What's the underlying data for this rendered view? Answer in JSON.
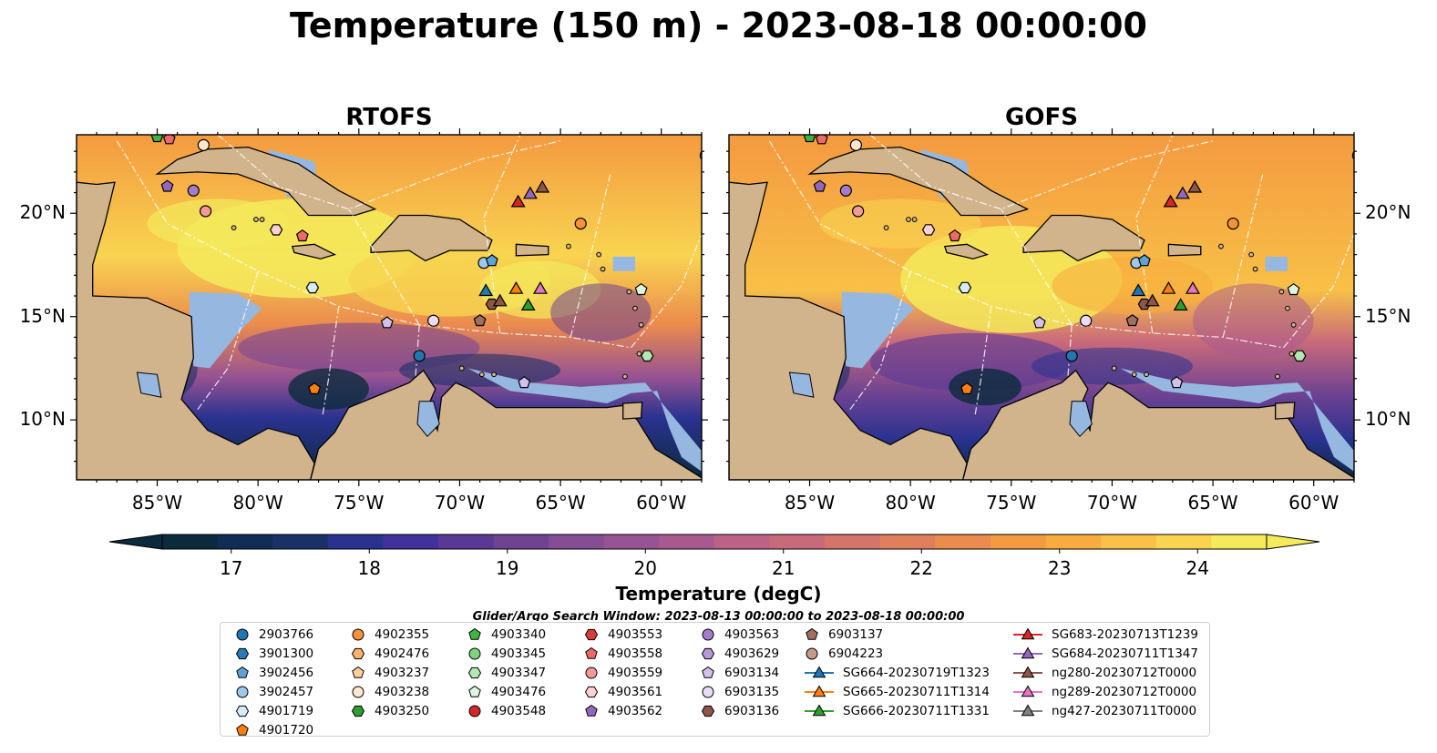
{
  "title": "Temperature (150 m) - 2023-08-18 00:00:00",
  "panels": [
    {
      "title": "RTOFS",
      "field": "rtofs"
    },
    {
      "title": "GOFS",
      "field": "gofs"
    }
  ],
  "axes": {
    "lon_ticks": [
      "85°W",
      "80°W",
      "75°W",
      "70°W",
      "65°W",
      "60°W"
    ],
    "lat_ticks": [
      "20°N",
      "15°N",
      "10°N"
    ]
  },
  "colorbar": {
    "label": "Temperature (degC)",
    "ticks": [
      "17",
      "18",
      "19",
      "20",
      "21",
      "22",
      "23",
      "24"
    ],
    "range": [
      16.5,
      24.5
    ],
    "step": 0.5,
    "colors": [
      "#0b2a3c",
      "#0f2d55",
      "#1b3067",
      "#2a3290",
      "#40319c",
      "#5a3896",
      "#6f4392",
      "#854d93",
      "#985392",
      "#a85a8f",
      "#bb6286",
      "#c96a7a",
      "#d6746b",
      "#e07f5c",
      "#eb8b4d",
      "#f49a40",
      "#f8ac3e",
      "#fbc047",
      "#f8d450",
      "#f4ea5b"
    ]
  },
  "search_window_note": "Glider/Argo Search Window: 2023-08-13 00:00:00 to 2023-08-18 00:00:00",
  "colors": {
    "land": "#d2b48c",
    "shelf": "#96b8e0",
    "ocean_cold": "#0b2a3c",
    "ocean_warm": "#f4ea5b"
  },
  "legend": {
    "columns": [
      [
        {
          "id": "2903766",
          "marker": "circle",
          "color": "#1f77b4"
        },
        {
          "id": "3901300",
          "marker": "hexagon",
          "color": "#2c7bb6"
        },
        {
          "id": "3902456",
          "marker": "pentagon",
          "color": "#5fa2d6"
        },
        {
          "id": "3902457",
          "marker": "circle",
          "color": "#9ec8ec"
        },
        {
          "id": "4901719",
          "marker": "hexagon",
          "color": "#d6ecfa"
        },
        {
          "id": "4901720",
          "marker": "pentagon",
          "color": "#ff7f0e"
        }
      ],
      [
        {
          "id": "4902355",
          "marker": "circle",
          "color": "#f5923b"
        },
        {
          "id": "4902476",
          "marker": "hexagon",
          "color": "#ffb26b"
        },
        {
          "id": "4903237",
          "marker": "pentagon",
          "color": "#ffcf9b"
        },
        {
          "id": "4903238",
          "marker": "circle",
          "color": "#ffe8cf"
        },
        {
          "id": "4903250",
          "marker": "hexagon",
          "color": "#2ca02c"
        }
      ],
      [
        {
          "id": "4903340",
          "marker": "pentagon",
          "color": "#3fb43f"
        },
        {
          "id": "4903345",
          "marker": "circle",
          "color": "#7fd37f"
        },
        {
          "id": "4903347",
          "marker": "hexagon",
          "color": "#b2e6b2"
        },
        {
          "id": "4903476",
          "marker": "pentagon",
          "color": "#dff5df"
        },
        {
          "id": "4903548",
          "marker": "circle",
          "color": "#d62728"
        }
      ],
      [
        {
          "id": "4903553",
          "marker": "hexagon",
          "color": "#dd3b3c"
        },
        {
          "id": "4903558",
          "marker": "pentagon",
          "color": "#ec6a6a"
        },
        {
          "id": "4903559",
          "marker": "circle",
          "color": "#f59a9a"
        },
        {
          "id": "4903561",
          "marker": "hexagon",
          "color": "#fbd1d1"
        },
        {
          "id": "4903562",
          "marker": "pentagon",
          "color": "#9467bd"
        }
      ],
      [
        {
          "id": "4903563",
          "marker": "circle",
          "color": "#a47cca"
        },
        {
          "id": "4903629",
          "marker": "hexagon",
          "color": "#b99ad8"
        },
        {
          "id": "6903134",
          "marker": "pentagon",
          "color": "#d4c0ea"
        },
        {
          "id": "6903135",
          "marker": "circle",
          "color": "#eadcf6"
        },
        {
          "id": "6903136",
          "marker": "hexagon",
          "color": "#8c564b"
        }
      ],
      [
        {
          "id": "6903137",
          "marker": "pentagon",
          "color": "#a0705f"
        },
        {
          "id": "6904223",
          "marker": "circle",
          "color": "#c49a8a"
        },
        {
          "id": "SG664-20230719T1323",
          "marker": "triangle-line",
          "color": "#1f77b4"
        },
        {
          "id": "SG665-20230711T1314",
          "marker": "triangle-line",
          "color": "#ff7f0e"
        },
        {
          "id": "SG666-20230711T1331",
          "marker": "triangle-line",
          "color": "#2ca02c"
        }
      ],
      [
        {
          "id": "SG683-20230713T1239",
          "marker": "triangle-line",
          "color": "#d62728"
        },
        {
          "id": "SG684-20230711T1347",
          "marker": "triangle-line",
          "color": "#9467bd"
        },
        {
          "id": "ng280-20230712T0000",
          "marker": "triangle-line",
          "color": "#8c564b"
        },
        {
          "id": "ng289-20230712T0000",
          "marker": "triangle-line",
          "color": "#e377c2"
        },
        {
          "id": "ng427-20230711T0000",
          "marker": "triangle-line",
          "color": "#7f7f7f"
        }
      ]
    ]
  },
  "observations": [
    {
      "id": "4903340",
      "lon": -85.0,
      "lat": 23.7
    },
    {
      "id": "4903558",
      "lon": -84.4,
      "lat": 23.6
    },
    {
      "id": "4903238",
      "lon": -82.7,
      "lat": 23.3
    },
    {
      "id": "4903345",
      "lon": -57.8,
      "lat": 22.8
    },
    {
      "id": "4903562",
      "lon": -84.5,
      "lat": 21.3
    },
    {
      "id": "4903563",
      "lon": -83.2,
      "lat": 21.1
    },
    {
      "id": "4903559",
      "lon": -82.6,
      "lat": 20.1
    },
    {
      "id": "4903561",
      "lon": -79.1,
      "lat": 19.2
    },
    {
      "id": "4903558",
      "lon": -77.8,
      "lat": 18.9
    },
    {
      "id": "4901719",
      "lon": -77.3,
      "lat": 16.4
    },
    {
      "id": "4902355",
      "lon": -64.0,
      "lat": 19.5
    },
    {
      "id": "3902457",
      "lon": -68.8,
      "lat": 17.6
    },
    {
      "id": "3902456",
      "lon": -68.4,
      "lat": 17.7
    },
    {
      "id": "6903134",
      "lon": -73.6,
      "lat": 14.7
    },
    {
      "id": "6903135",
      "lon": -71.3,
      "lat": 14.8
    },
    {
      "id": "6903137",
      "lon": -69.0,
      "lat": 14.8
    },
    {
      "id": "6903136",
      "lon": -68.4,
      "lat": 15.6
    },
    {
      "id": "2903766",
      "lon": -72.0,
      "lat": 13.1
    },
    {
      "id": "4903347",
      "lon": -60.7,
      "lat": 13.1
    },
    {
      "id": "4903476",
      "lon": -61.0,
      "lat": 16.3
    },
    {
      "id": "4901720",
      "lon": -77.2,
      "lat": 11.5
    },
    {
      "id": "6903134",
      "lon": -66.8,
      "lat": 11.8
    },
    {
      "id": "SG683-20230713T1239",
      "lon": -67.1,
      "lat": 20.5
    },
    {
      "id": "SG684-20230711T1347",
      "lon": -66.5,
      "lat": 20.9
    },
    {
      "id": "ng280-20230712T0000",
      "lon": -65.9,
      "lat": 21.2
    },
    {
      "id": "SG664-20230719T1323",
      "lon": -68.7,
      "lat": 16.2
    },
    {
      "id": "ng280-20230712T0000",
      "lon": -68.0,
      "lat": 15.7
    },
    {
      "id": "SG665-20230711T1314",
      "lon": -67.2,
      "lat": 16.3
    },
    {
      "id": "SG666-20230711T1331",
      "lon": -66.6,
      "lat": 15.5
    },
    {
      "id": "ng289-20230712T0000",
      "lon": -66.0,
      "lat": 16.3
    }
  ]
}
